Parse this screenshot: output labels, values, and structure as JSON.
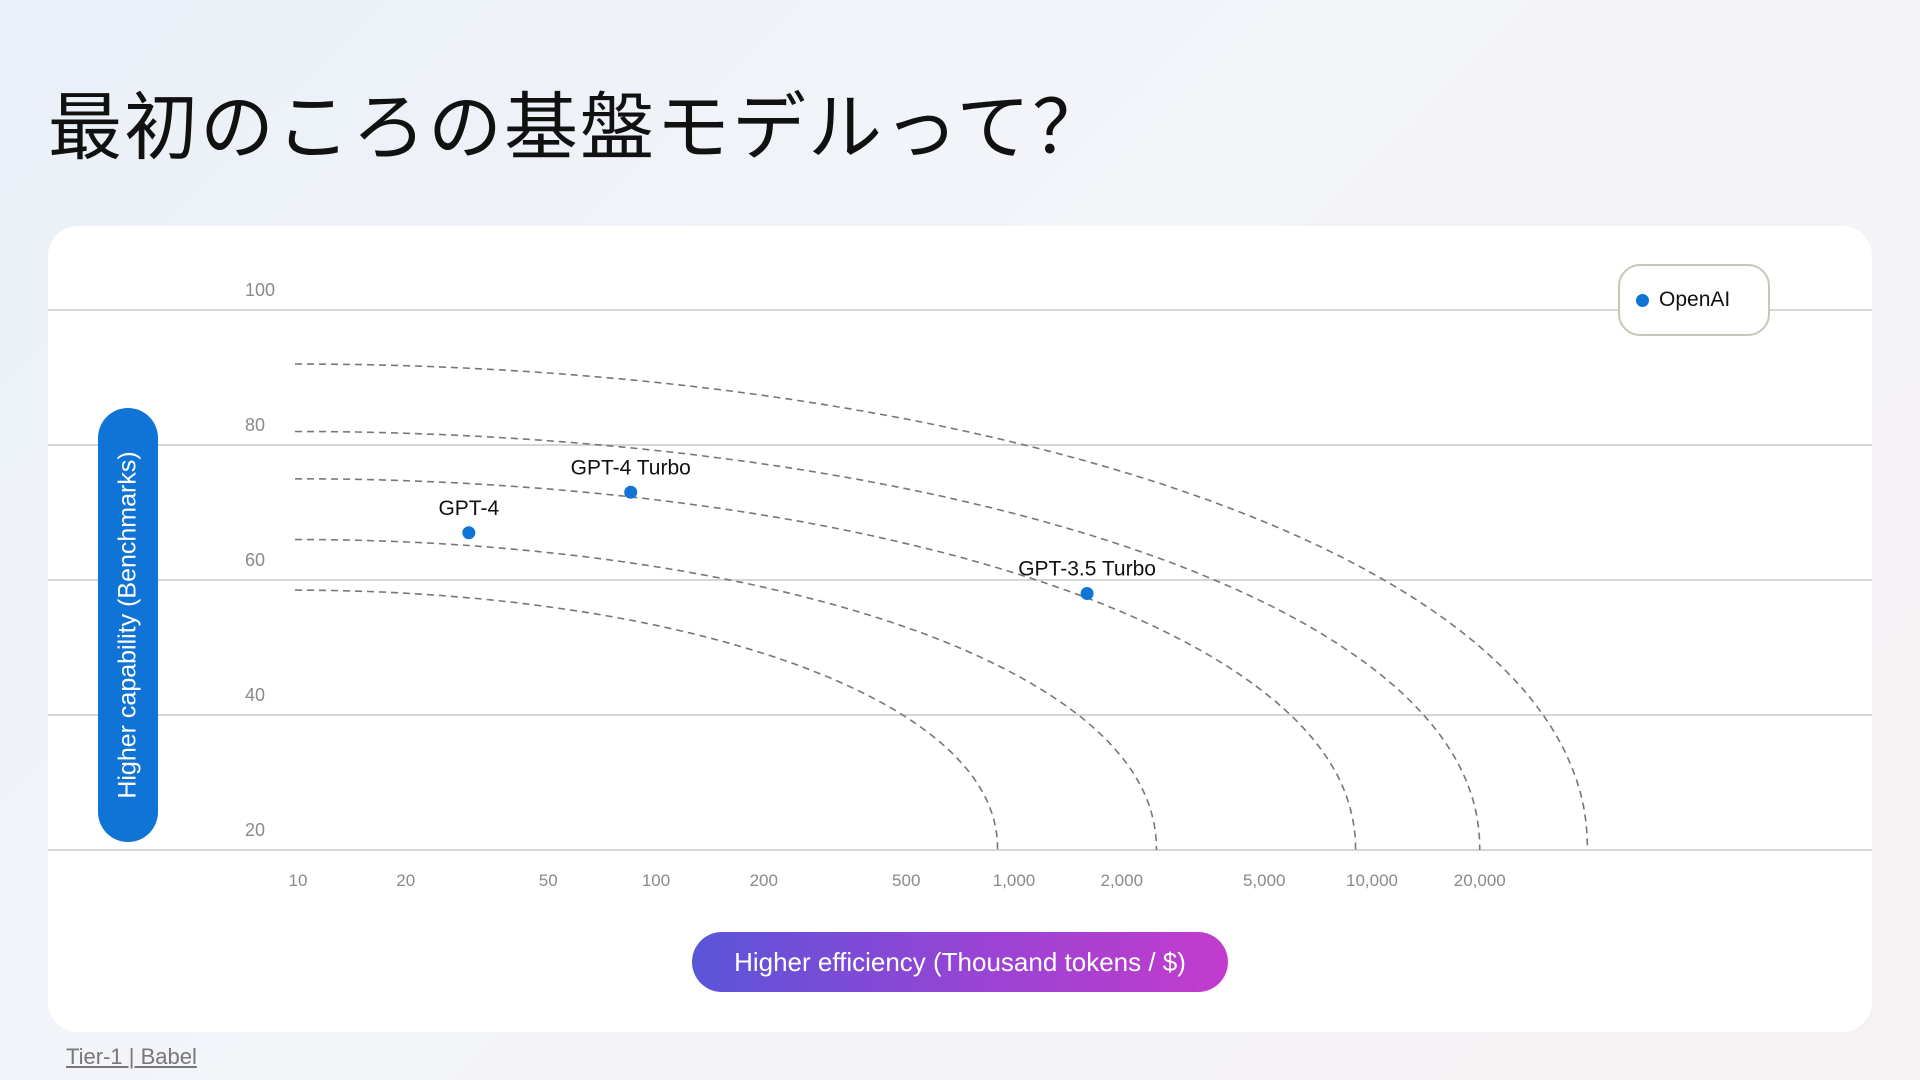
{
  "slide": {
    "title": "最初のころの基盤モデルって？",
    "footer": "Tier-1 | Babel"
  },
  "colors": {
    "point": "#0f74d6",
    "ylabel_pill": "#0f74d6",
    "xlabel_gradient": [
      "#5a55d8",
      "#c23ccc"
    ],
    "curve": "#777777",
    "grid": "#d6d6d6"
  },
  "chart_data": {
    "type": "scatter",
    "xlabel": "Higher efficiency (Thousand tokens / $)",
    "ylabel": "Higher capability (Benchmarks)",
    "x_scale": "log",
    "xlim": [
      10,
      100000
    ],
    "ylim": [
      20,
      100
    ],
    "x_ticks": [
      10,
      20,
      50,
      100,
      200,
      500,
      1000,
      2000,
      5000,
      10000,
      20000
    ],
    "x_tick_labels": [
      "10",
      "20",
      "50",
      "100",
      "200",
      "500",
      "1,000",
      "2,000",
      "5,000",
      "10,000",
      "20,000"
    ],
    "y_ticks": [
      20,
      40,
      60,
      80,
      100
    ],
    "y_tick_labels": [
      "20",
      "40",
      "60",
      "80",
      "100"
    ],
    "grid": "horizontal",
    "legend": {
      "position": "top-right",
      "entries": [
        "OpenAI"
      ]
    },
    "series": [
      {
        "name": "OpenAI",
        "color": "#0f74d6",
        "points": [
          {
            "label": "GPT-4",
            "x": 30,
            "y": 67
          },
          {
            "label": "GPT-4 Turbo",
            "x": 85,
            "y": 73
          },
          {
            "label": "GPT-3.5 Turbo",
            "x": 1600,
            "y": 58
          }
        ]
      }
    ],
    "frontier_curves": [
      {
        "y0": 58.5,
        "x_end": 900
      },
      {
        "y0": 66,
        "x_end": 2500
      },
      {
        "y0": 75,
        "x_end": 9000
      },
      {
        "y0": 82,
        "x_end": 20000
      },
      {
        "y0": 92,
        "x_end": 40000
      }
    ]
  }
}
